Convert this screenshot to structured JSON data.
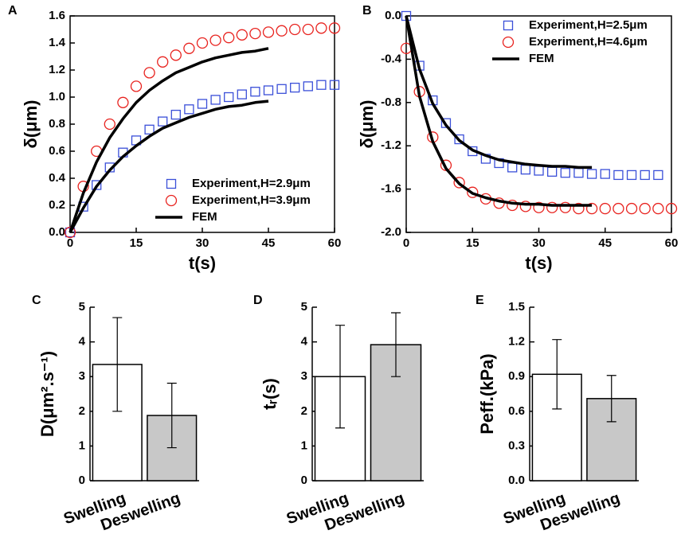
{
  "chart_data": [
    {
      "type": "line",
      "label": "A",
      "x_label": "t(s)",
      "y_label": "δ(μm)",
      "xlim": [
        0,
        60
      ],
      "ylim": [
        0,
        1.6
      ],
      "xticks": [
        0,
        15,
        30,
        45,
        60
      ],
      "yticks": [
        {
          "value": 0,
          "label": "0.0"
        },
        0.2,
        0.4,
        0.6,
        0.8,
        {
          "value": 1,
          "label": "1.0"
        },
        1.2,
        1.4,
        1.6
      ],
      "legend": "lower right",
      "x": [
        0,
        3,
        6,
        9,
        12,
        15,
        18,
        21,
        24,
        27,
        30,
        33,
        36,
        39,
        42,
        45,
        48,
        51,
        54,
        57,
        60
      ],
      "series": [
        {
          "name": "Experiment,H=2.9μm",
          "color": "#3a4fd8",
          "marker": "square",
          "values": [
            0,
            0.19,
            0.35,
            0.48,
            0.59,
            0.68,
            0.76,
            0.82,
            0.87,
            0.91,
            0.95,
            0.98,
            1.0,
            1.02,
            1.04,
            1.05,
            1.06,
            1.07,
            1.08,
            1.09,
            1.09
          ]
        },
        {
          "name": "Experiment,H=3.9μm",
          "color": "#e8231f",
          "marker": "circle",
          "values": [
            0,
            0.34,
            0.6,
            0.8,
            0.96,
            1.08,
            1.18,
            1.26,
            1.31,
            1.36,
            1.4,
            1.42,
            1.44,
            1.46,
            1.47,
            1.48,
            1.49,
            1.5,
            1.5,
            1.51,
            1.51
          ]
        },
        {
          "name": "FEM",
          "color": "#000000",
          "marker": "none",
          "values": [
            0,
            0.29,
            0.52,
            0.7,
            0.84,
            0.96,
            1.05,
            1.12,
            1.18,
            1.22,
            1.26,
            1.29,
            1.31,
            1.33,
            1.34,
            1.36,
            null,
            null,
            null,
            null,
            null
          ]
        },
        {
          "name": "FEM",
          "color": "#000000",
          "marker": "none",
          "values": [
            0,
            0.18,
            0.34,
            0.46,
            0.56,
            0.64,
            0.71,
            0.77,
            0.81,
            0.85,
            0.88,
            0.91,
            0.93,
            0.94,
            0.96,
            0.97,
            null,
            null,
            null,
            null,
            null
          ]
        }
      ]
    },
    {
      "type": "line",
      "label": "B",
      "x_label": "t(s)",
      "y_label": "δ(μm)",
      "xlim": [
        0,
        60
      ],
      "ylim": [
        -2,
        0
      ],
      "xticks": [
        0,
        15,
        30,
        45,
        60
      ],
      "yticks": [
        {
          "value": -2,
          "label": "-2.0"
        },
        -1.6,
        -1.2,
        -0.8,
        -0.4,
        {
          "value": 0,
          "label": "0.0"
        }
      ],
      "legend": "upper right",
      "x": [
        0,
        3,
        6,
        9,
        12,
        15,
        18,
        21,
        24,
        27,
        30,
        33,
        36,
        39,
        42,
        45,
        48,
        51,
        54,
        57,
        60
      ],
      "series": [
        {
          "name": "Experiment,H=2.5μm",
          "color": "#3a4fd8",
          "marker": "square",
          "values": [
            0,
            -0.46,
            -0.78,
            -0.99,
            -1.14,
            -1.25,
            -1.32,
            -1.36,
            -1.4,
            -1.42,
            -1.43,
            -1.44,
            -1.45,
            -1.45,
            -1.46,
            -1.46,
            -1.47,
            -1.47,
            -1.47,
            -1.47,
            null
          ]
        },
        {
          "name": "Experiment,H=4.6μm",
          "color": "#e8231f",
          "marker": "circle",
          "values": [
            -0.3,
            -0.7,
            -1.12,
            -1.38,
            -1.54,
            -1.63,
            -1.69,
            -1.73,
            -1.75,
            -1.76,
            -1.77,
            -1.77,
            -1.77,
            -1.78,
            -1.78,
            -1.78,
            -1.78,
            -1.78,
            -1.78,
            -1.78,
            -1.78
          ]
        },
        {
          "name": "FEM",
          "color": "#000000",
          "marker": "none",
          "values": [
            0,
            -0.49,
            -0.81,
            -1.01,
            -1.15,
            -1.24,
            -1.29,
            -1.33,
            -1.35,
            -1.37,
            -1.38,
            -1.39,
            -1.39,
            -1.4,
            -1.4,
            null,
            null,
            null,
            null,
            null,
            null
          ]
        },
        {
          "name": "FEM",
          "color": "#000000",
          "marker": "none",
          "values": [
            0,
            -0.74,
            -1.16,
            -1.41,
            -1.55,
            -1.64,
            -1.68,
            -1.71,
            -1.73,
            -1.74,
            -1.74,
            -1.75,
            -1.75,
            -1.75,
            -1.75,
            null,
            null,
            null,
            null,
            null,
            null
          ]
        }
      ]
    },
    {
      "type": "bar",
      "label": "C",
      "y_label": "D(μm².s⁻¹)",
      "categories": [
        "Swelling",
        "Deswelling"
      ],
      "values": [
        3.35,
        1.88
      ],
      "errors": [
        1.35,
        0.93
      ],
      "colors": [
        "#ffffff",
        "#c8c8c8"
      ],
      "ylim": [
        0,
        5
      ],
      "yticks": [
        0,
        1,
        2,
        3,
        4,
        5
      ]
    },
    {
      "type": "bar",
      "label": "D",
      "y_label": "tᵣ(s)",
      "categories": [
        "Swelling",
        "Deswelling"
      ],
      "values": [
        3.0,
        3.92
      ],
      "errors": [
        1.48,
        0.92
      ],
      "colors": [
        "#ffffff",
        "#c8c8c8"
      ],
      "ylim": [
        0,
        5
      ],
      "yticks": [
        0,
        1,
        2,
        3,
        4,
        5
      ]
    },
    {
      "type": "bar",
      "label": "E",
      "y_label": "Peff.(kPa)",
      "categories": [
        "Swelling",
        "Deswelling"
      ],
      "values": [
        0.92,
        0.71
      ],
      "errors": [
        0.3,
        0.2
      ],
      "colors": [
        "#ffffff",
        "#c8c8c8"
      ],
      "ylim": [
        0,
        1.5
      ],
      "yticks": [
        {
          "value": 0,
          "label": "0.0"
        },
        0.3,
        0.6,
        0.9,
        1.2,
        1.5
      ]
    }
  ]
}
